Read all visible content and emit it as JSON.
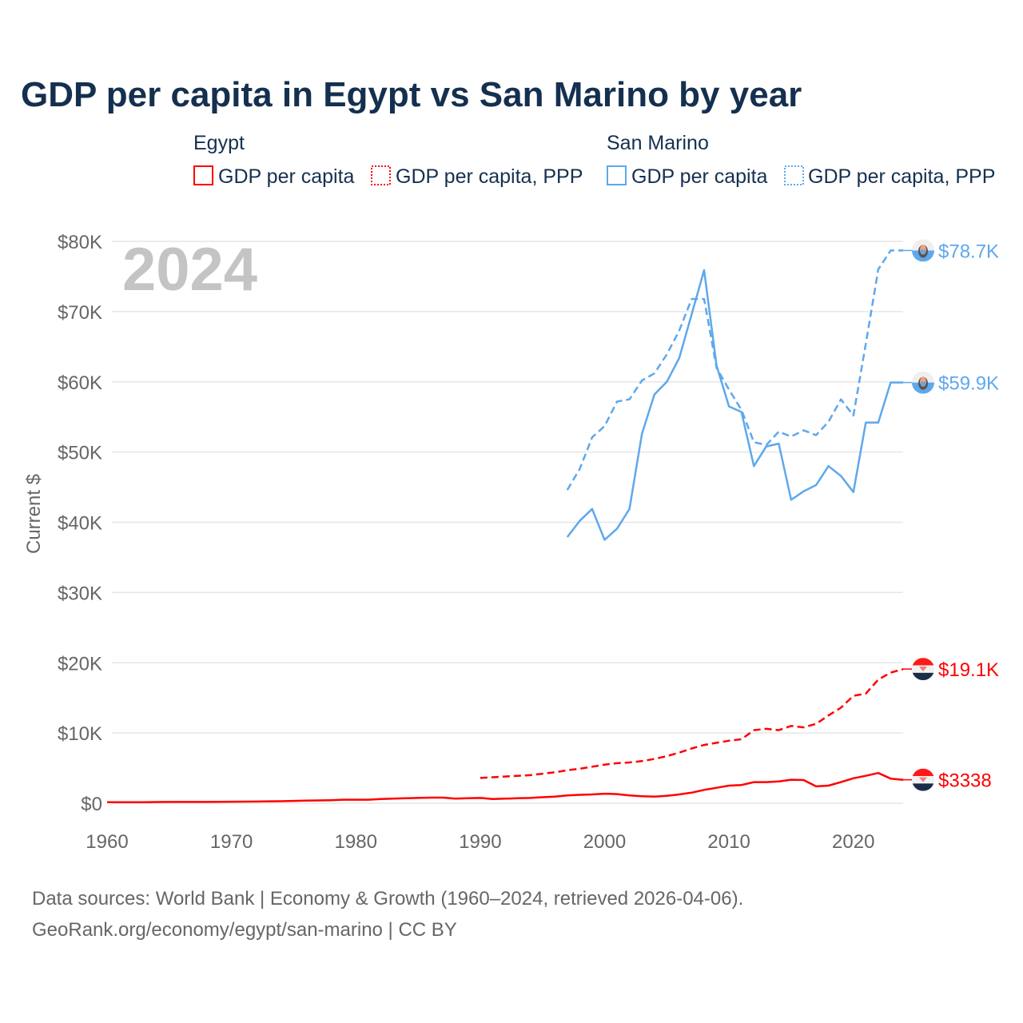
{
  "chart_data": {
    "type": "line",
    "title": "GDP per capita in Egypt vs San Marino by year",
    "ylabel": "Current $",
    "xlabel": "",
    "xlim": [
      1960,
      2024
    ],
    "ylim": [
      0,
      80000
    ],
    "grid": true,
    "year_label": "2024",
    "x_ticks": [
      1960,
      1970,
      1980,
      1990,
      2000,
      2010,
      2020
    ],
    "x_tick_labels": [
      "1960",
      "1970",
      "1980",
      "1990",
      "2000",
      "2010",
      "2020"
    ],
    "y_ticks": [
      0,
      10000,
      20000,
      30000,
      40000,
      50000,
      60000,
      70000,
      80000
    ],
    "y_tick_labels": [
      "$0",
      "$10K",
      "$20K",
      "$30K",
      "$40K",
      "$50K",
      "$60K",
      "$70K",
      "$80K"
    ],
    "legend": {
      "placement": "top",
      "groups": [
        {
          "name": "Egypt",
          "items": [
            "GDP per capita",
            "GDP per capita, PPP"
          ]
        },
        {
          "name": "San Marino",
          "items": [
            "GDP per capita",
            "GDP per capita, PPP"
          ]
        }
      ]
    },
    "series": [
      {
        "name": "Egypt GDP per capita",
        "country": "Egypt",
        "style": "solid",
        "color": "#ff0000",
        "start_year": 1960,
        "values": [
          150,
          150,
          140,
          150,
          170,
          180,
          180,
          180,
          180,
          200,
          220,
          230,
          240,
          270,
          290,
          330,
          370,
          400,
          430,
          500,
          500,
          500,
          600,
          650,
          700,
          750,
          800,
          800,
          650,
          700,
          750,
          600,
          650,
          700,
          750,
          850,
          950,
          1100,
          1200,
          1250,
          1350,
          1300,
          1100,
          1000,
          950,
          1050,
          1250,
          1500,
          1900,
          2200,
          2500,
          2600,
          3000,
          3000,
          3100,
          3350,
          3300,
          2400,
          2500,
          3000,
          3550,
          3900,
          4300,
          3500,
          3338
        ],
        "end_label": "$3338"
      },
      {
        "name": "Egypt GDP per capita, PPP",
        "country": "Egypt",
        "style": "dashed",
        "color": "#ff0000",
        "start_year": 1990,
        "values": [
          3600,
          3700,
          3800,
          3900,
          4000,
          4200,
          4400,
          4700,
          4900,
          5200,
          5500,
          5700,
          5800,
          6000,
          6300,
          6700,
          7200,
          7800,
          8300,
          8600,
          8900,
          9100,
          10400,
          10600,
          10400,
          11000,
          10800,
          11300,
          12500,
          13600,
          15300,
          15600,
          17600,
          18600,
          19100
        ],
        "end_label": "$19.1K"
      },
      {
        "name": "San Marino GDP per capita",
        "country": "San Marino",
        "style": "solid",
        "color": "#5ea8ec",
        "start_year": 1997,
        "values": [
          37900,
          40200,
          41900,
          37500,
          39100,
          41900,
          52600,
          58200,
          60000,
          63400,
          69600,
          75900,
          62300,
          56500,
          55700,
          48000,
          50800,
          51200,
          43200,
          44400,
          45300,
          48000,
          46600,
          44300,
          54200,
          54200,
          59900,
          59900
        ],
        "end_label": "$59.9K"
      },
      {
        "name": "San Marino GDP per capita, PPP",
        "country": "San Marino",
        "style": "dashed",
        "color": "#5ea8ec",
        "start_year": 1997,
        "values": [
          44600,
          47600,
          52100,
          53700,
          57200,
          57500,
          60200,
          61200,
          63900,
          67300,
          71800,
          71800,
          62000,
          58900,
          56000,
          51400,
          51000,
          52900,
          52200,
          53100,
          52400,
          54300,
          57500,
          55200,
          65400,
          76000,
          78700,
          78700
        ],
        "end_label": "$78.7K"
      }
    ]
  },
  "footer": {
    "line1": "Data sources: World Bank | Economy & Growth (1960–2024, retrieved 2026-04-06).",
    "line2": "GeoRank.org/economy/egypt/san-marino | CC BY"
  },
  "colors": {
    "egypt": "#ff0000",
    "san_marino": "#5ea8ec",
    "title": "#15304f"
  },
  "icons": {
    "egypt": "egypt-flag-icon",
    "san_marino": "san-marino-flag-icon"
  }
}
